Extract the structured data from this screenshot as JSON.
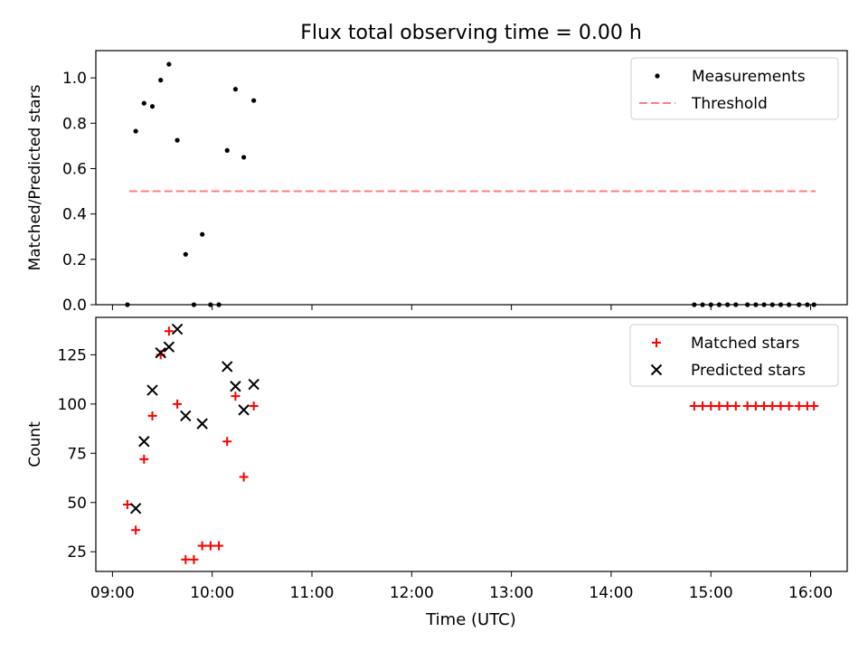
{
  "title": "Flux total observing time = 0.00 h",
  "x_axis": {
    "label": "Time (UTC)",
    "unit": "hours UTC",
    "range": [
      "08:50",
      "16:22"
    ],
    "ticks": [
      "09:00",
      "10:00",
      "11:00",
      "12:00",
      "13:00",
      "14:00",
      "15:00",
      "16:00"
    ]
  },
  "chart_data": [
    {
      "type": "scatter",
      "ylabel": "Matched/Predicted stars",
      "ylim": [
        0,
        1.12
      ],
      "yticks": [
        "0.0",
        "0.2",
        "0.4",
        "0.6",
        "0.8",
        "1.0"
      ],
      "legend_position": "top-right",
      "series": [
        {
          "name": "Measurements",
          "style": "dots",
          "color": "#000000",
          "points": [
            {
              "x": "09:09",
              "y": 0.0
            },
            {
              "x": "09:14",
              "y": 0.765
            },
            {
              "x": "09:19",
              "y": 0.888
            },
            {
              "x": "09:24",
              "y": 0.874
            },
            {
              "x": "09:29",
              "y": 0.99
            },
            {
              "x": "09:34",
              "y": 1.06
            },
            {
              "x": "09:39",
              "y": 0.725
            },
            {
              "x": "09:44",
              "y": 0.222
            },
            {
              "x": "09:49",
              "y": 0.0
            },
            {
              "x": "09:54",
              "y": 0.31
            },
            {
              "x": "09:59",
              "y": 0.0
            },
            {
              "x": "10:04",
              "y": 0.0
            },
            {
              "x": "10:09",
              "y": 0.68
            },
            {
              "x": "10:14",
              "y": 0.95
            },
            {
              "x": "10:19",
              "y": 0.65
            },
            {
              "x": "10:25",
              "y": 0.9
            },
            {
              "x": "14:50",
              "y": 0.0
            },
            {
              "x": "14:55",
              "y": 0.0
            },
            {
              "x": "15:00",
              "y": 0.0
            },
            {
              "x": "15:05",
              "y": 0.0
            },
            {
              "x": "15:10",
              "y": 0.0
            },
            {
              "x": "15:15",
              "y": 0.0
            },
            {
              "x": "15:22",
              "y": 0.0
            },
            {
              "x": "15:27",
              "y": 0.0
            },
            {
              "x": "15:32",
              "y": 0.0
            },
            {
              "x": "15:37",
              "y": 0.0
            },
            {
              "x": "15:42",
              "y": 0.0
            },
            {
              "x": "15:47",
              "y": 0.0
            },
            {
              "x": "15:53",
              "y": 0.0
            },
            {
              "x": "15:58",
              "y": 0.0
            },
            {
              "x": "16:02",
              "y": 0.0
            }
          ]
        },
        {
          "name": "Threshold",
          "style": "dashed-line",
          "color": "#ff7f7f",
          "points": [
            {
              "x": "09:10",
              "y": 0.5
            },
            {
              "x": "16:03",
              "y": 0.5
            }
          ]
        }
      ]
    },
    {
      "type": "scatter",
      "ylabel": "Count",
      "ylim": [
        15,
        144
      ],
      "yticks": [
        "25",
        "50",
        "75",
        "100",
        "125"
      ],
      "legend_position": "top-right",
      "series": [
        {
          "name": "Matched stars",
          "style": "plus",
          "color": "#ff0000",
          "points": [
            {
              "x": "09:09",
              "y": 49
            },
            {
              "x": "09:14",
              "y": 36
            },
            {
              "x": "09:19",
              "y": 72
            },
            {
              "x": "09:24",
              "y": 94
            },
            {
              "x": "09:29",
              "y": 125
            },
            {
              "x": "09:34",
              "y": 137
            },
            {
              "x": "09:39",
              "y": 100
            },
            {
              "x": "09:44",
              "y": 21
            },
            {
              "x": "09:49",
              "y": 21
            },
            {
              "x": "09:54",
              "y": 28
            },
            {
              "x": "09:59",
              "y": 28
            },
            {
              "x": "10:04",
              "y": 28
            },
            {
              "x": "10:09",
              "y": 81
            },
            {
              "x": "10:14",
              "y": 104
            },
            {
              "x": "10:19",
              "y": 63
            },
            {
              "x": "10:25",
              "y": 99
            },
            {
              "x": "14:50",
              "y": 99
            },
            {
              "x": "14:55",
              "y": 99
            },
            {
              "x": "15:00",
              "y": 99
            },
            {
              "x": "15:05",
              "y": 99
            },
            {
              "x": "15:10",
              "y": 99
            },
            {
              "x": "15:15",
              "y": 99
            },
            {
              "x": "15:22",
              "y": 99
            },
            {
              "x": "15:27",
              "y": 99
            },
            {
              "x": "15:32",
              "y": 99
            },
            {
              "x": "15:37",
              "y": 99
            },
            {
              "x": "15:42",
              "y": 99
            },
            {
              "x": "15:47",
              "y": 99
            },
            {
              "x": "15:53",
              "y": 99
            },
            {
              "x": "15:58",
              "y": 99
            },
            {
              "x": "16:02",
              "y": 99
            }
          ]
        },
        {
          "name": "Predicted stars",
          "style": "cross",
          "color": "#000000",
          "points": [
            {
              "x": "09:14",
              "y": 47
            },
            {
              "x": "09:19",
              "y": 81
            },
            {
              "x": "09:24",
              "y": 107
            },
            {
              "x": "09:29",
              "y": 126
            },
            {
              "x": "09:34",
              "y": 129
            },
            {
              "x": "09:39",
              "y": 138
            },
            {
              "x": "09:44",
              "y": 94
            },
            {
              "x": "09:54",
              "y": 90
            },
            {
              "x": "10:09",
              "y": 119
            },
            {
              "x": "10:14",
              "y": 109
            },
            {
              "x": "10:19",
              "y": 97
            },
            {
              "x": "10:25",
              "y": 110
            }
          ]
        }
      ]
    }
  ]
}
